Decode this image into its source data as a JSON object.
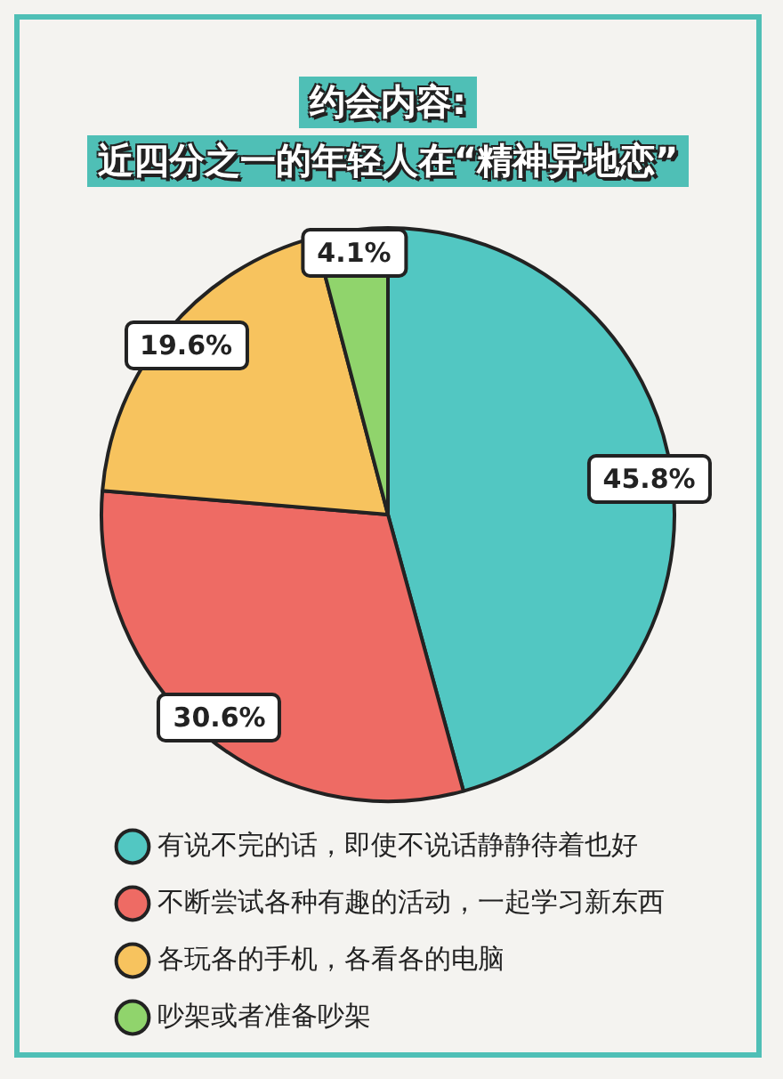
{
  "chart_data": {
    "type": "pie",
    "title": "约会内容:",
    "subtitle": "近四分之一的年轻人在“精神异地恋”",
    "categories": [
      "有说不完的话，即使不说话静静待着也好",
      "不断尝试各种有趣的活动，一起学习新东西",
      "各玩各的手机，各看各的电脑",
      "吵架或者准备吵架"
    ],
    "values": [
      45.8,
      30.6,
      19.6,
      4.1
    ],
    "colors": [
      "#52c7c2",
      "#ee6b64",
      "#f7c35e",
      "#90d46c"
    ],
    "value_labels": [
      "45.8%",
      "30.6%",
      "19.6%",
      "4.1%"
    ],
    "legend": "bottom"
  }
}
